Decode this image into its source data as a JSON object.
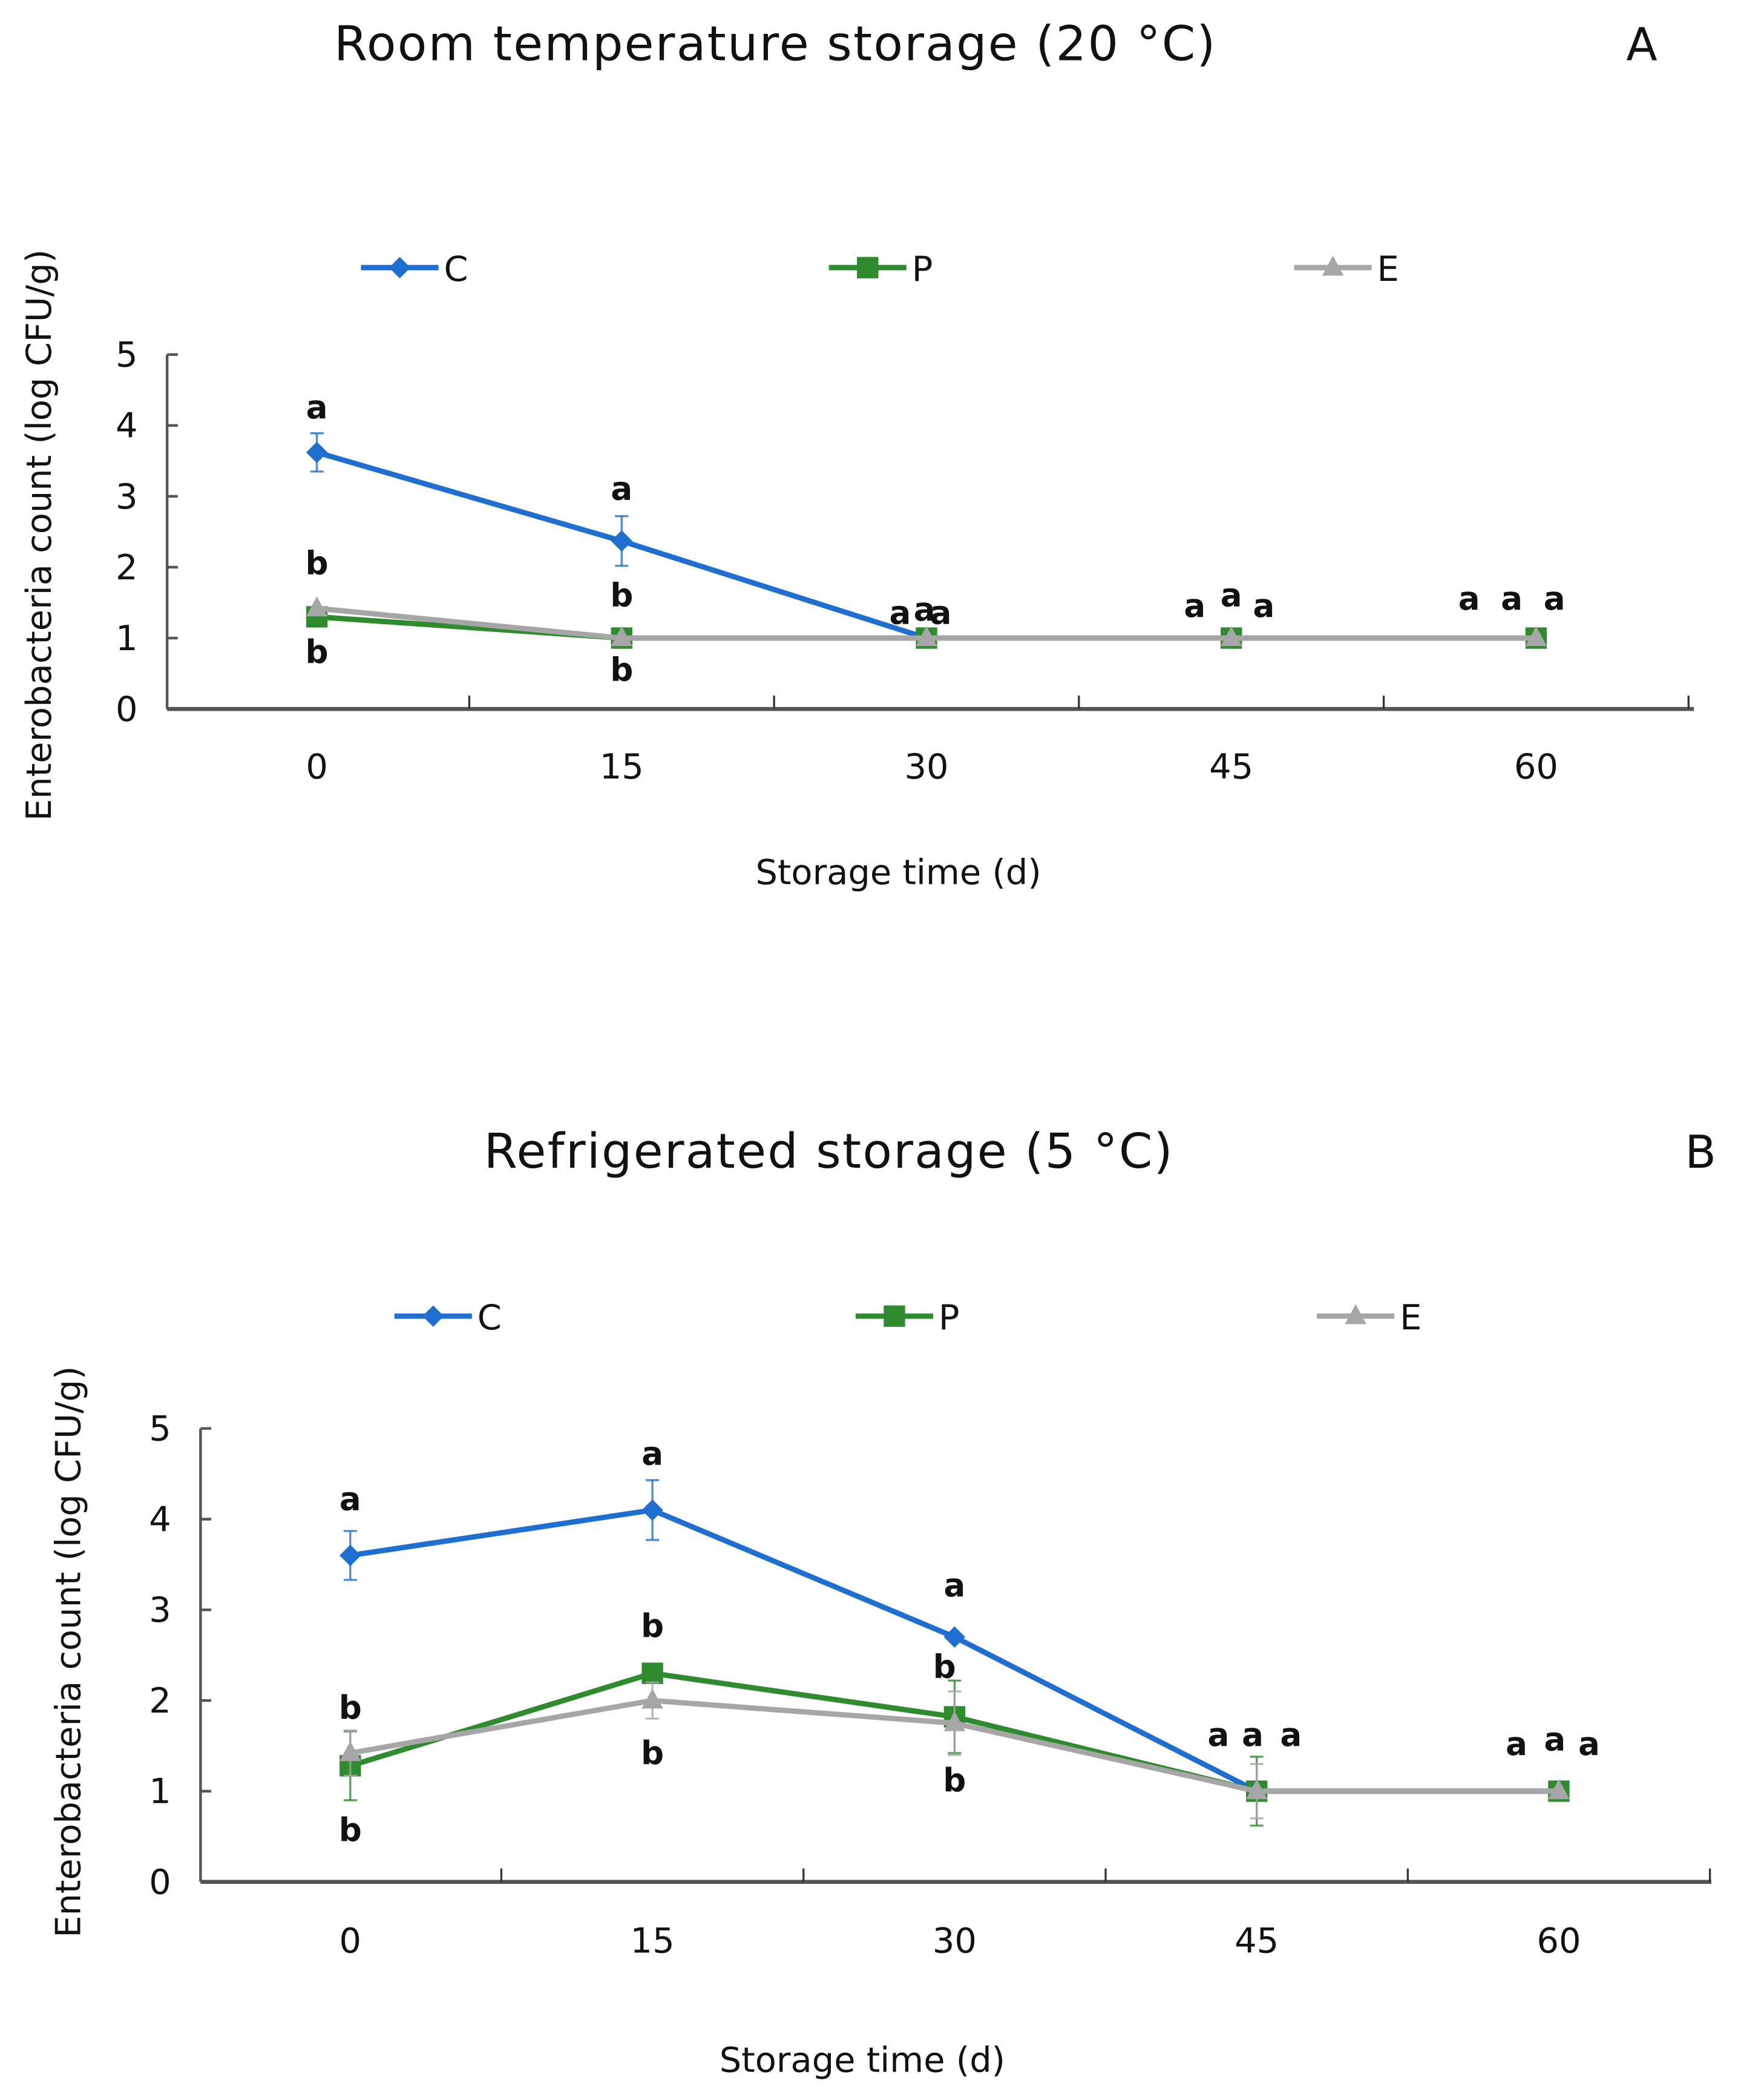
{
  "chart_data": [
    {
      "type": "line",
      "title": "Room temperature storage (20 °C)",
      "panel": "A",
      "xlabel": "Storage time (d)",
      "ylabel": "Enterobacteria count (log CFU/g)",
      "x": [
        0,
        15,
        30,
        45,
        60
      ],
      "xticks": [
        "0",
        "15",
        "30",
        "45",
        "60"
      ],
      "yticks": [
        "0",
        "1",
        "2",
        "3",
        "4",
        "5"
      ],
      "ylim": [
        0,
        5
      ],
      "grid": false,
      "legend_position": "top",
      "series": [
        {
          "name": "C",
          "color": "#1f6fd1",
          "marker": "diamond",
          "values": [
            3.62,
            2.37,
            1.0,
            1.0,
            1.0
          ],
          "errors": [
            0.27,
            0.35,
            0,
            0,
            0
          ]
        },
        {
          "name": "P",
          "color": "#2e8b2e",
          "marker": "square",
          "values": [
            1.3,
            1.0,
            1.0,
            1.0,
            1.0
          ],
          "errors": [
            0,
            0,
            0,
            0,
            0
          ]
        },
        {
          "name": "E",
          "color": "#a6a6a6",
          "marker": "triangle",
          "values": [
            1.42,
            1.0,
            1.0,
            1.0,
            1.0
          ],
          "errors": [
            0,
            0,
            0,
            0,
            0
          ]
        }
      ],
      "annotations": [
        {
          "x": 0,
          "y": 4.1,
          "text": "a"
        },
        {
          "x": 0,
          "y": 1.9,
          "text": "b"
        },
        {
          "x": 0,
          "y": 0.65,
          "text": "b"
        },
        {
          "x": 15,
          "y": 2.95,
          "text": "a"
        },
        {
          "x": 15,
          "y": 1.45,
          "text": "b"
        },
        {
          "x": 15,
          "y": 0.4,
          "text": "b"
        },
        {
          "x": 28.7,
          "y": 1.2,
          "text": "a"
        },
        {
          "x": 29.9,
          "y": 1.25,
          "text": "a"
        },
        {
          "x": 30.7,
          "y": 1.2,
          "text": "a"
        },
        {
          "x": 43.2,
          "y": 1.3,
          "text": "a"
        },
        {
          "x": 45,
          "y": 1.45,
          "text": "a"
        },
        {
          "x": 46.6,
          "y": 1.3,
          "text": "a"
        },
        {
          "x": 56.7,
          "y": 1.4,
          "text": "a"
        },
        {
          "x": 58.8,
          "y": 1.4,
          "text": "a"
        },
        {
          "x": 60.9,
          "y": 1.4,
          "text": "a"
        }
      ]
    },
    {
      "type": "line",
      "title": "Refrigerated storage (5 °C)",
      "panel": "B",
      "xlabel": "Storage time (d)",
      "ylabel": "Enterobacteria count (log CFU/g)",
      "x": [
        0,
        15,
        30,
        45,
        60
      ],
      "xticks": [
        "0",
        "15",
        "30",
        "45",
        "60"
      ],
      "yticks": [
        "0",
        "1",
        "2",
        "3",
        "4",
        "5"
      ],
      "ylim": [
        0,
        5
      ],
      "grid": false,
      "legend_position": "top",
      "series": [
        {
          "name": "C",
          "color": "#1f6fd1",
          "marker": "diamond",
          "values": [
            3.6,
            4.1,
            2.7,
            1.0,
            1.0
          ],
          "errors": [
            0.27,
            0.33,
            0,
            0,
            0
          ]
        },
        {
          "name": "P",
          "color": "#2e8b2e",
          "marker": "square",
          "values": [
            1.28,
            2.3,
            1.82,
            1.0,
            1.0
          ],
          "errors": [
            0.38,
            0.1,
            0.4,
            0.38,
            0
          ]
        },
        {
          "name": "E",
          "color": "#a6a6a6",
          "marker": "triangle",
          "values": [
            1.42,
            2.0,
            1.75,
            1.0,
            1.0
          ],
          "errors": [
            0.25,
            0.2,
            0.35,
            0.3,
            0
          ]
        }
      ],
      "annotations": [
        {
          "x": 0,
          "y": 4.1,
          "text": "a"
        },
        {
          "x": 0,
          "y": 1.8,
          "text": "b"
        },
        {
          "x": 0,
          "y": 0.45,
          "text": "b"
        },
        {
          "x": 15,
          "y": 4.6,
          "text": "a"
        },
        {
          "x": 15,
          "y": 2.7,
          "text": "b"
        },
        {
          "x": 15,
          "y": 1.3,
          "text": "b"
        },
        {
          "x": 30,
          "y": 3.15,
          "text": "a"
        },
        {
          "x": 29.5,
          "y": 2.25,
          "text": "b"
        },
        {
          "x": 30,
          "y": 1.0,
          "text": "b"
        },
        {
          "x": 43.1,
          "y": 1.5,
          "text": "a"
        },
        {
          "x": 44.8,
          "y": 1.5,
          "text": "a"
        },
        {
          "x": 46.7,
          "y": 1.5,
          "text": "a"
        },
        {
          "x": 57.9,
          "y": 1.4,
          "text": "a"
        },
        {
          "x": 59.8,
          "y": 1.45,
          "text": "a"
        },
        {
          "x": 61.5,
          "y": 1.4,
          "text": "a"
        }
      ]
    }
  ]
}
